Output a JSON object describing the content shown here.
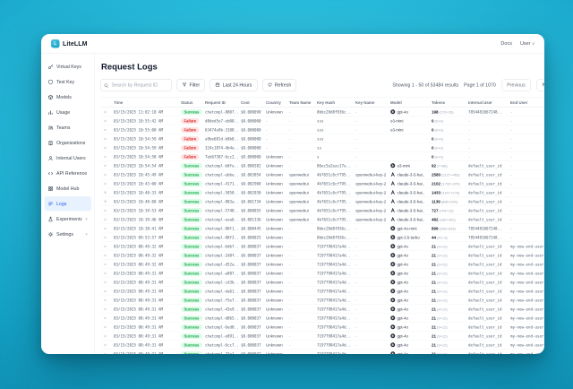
{
  "topbar": {
    "logo": "LiteLLM",
    "docs": "Docs",
    "user": "User"
  },
  "sidebar": {
    "items": [
      {
        "label": "Virtual Keys",
        "icon": "key-icon"
      },
      {
        "label": "Test Key",
        "icon": "test-key-icon"
      },
      {
        "label": "Models",
        "icon": "models-icon"
      },
      {
        "label": "Usage",
        "icon": "usage-icon"
      },
      {
        "label": "Teams",
        "icon": "teams-icon"
      },
      {
        "label": "Organizations",
        "icon": "organizations-icon"
      },
      {
        "label": "Internal Users",
        "icon": "internal-users-icon"
      },
      {
        "label": "API Reference",
        "icon": "api-reference-icon"
      },
      {
        "label": "Model Hub",
        "icon": "model-hub-icon"
      },
      {
        "label": "Logs",
        "icon": "logs-icon",
        "selected": true
      },
      {
        "label": "Experimental",
        "icon": "experimental-icon",
        "expandable": true
      },
      {
        "label": "Settings",
        "icon": "settings-icon",
        "expandable": true
      }
    ]
  },
  "main": {
    "title": "Request Logs",
    "toolbar": {
      "search_placeholder": "Search by Request ID",
      "filter_label": "Filter",
      "time_range_label": "Last 24 Hours",
      "refresh_label": "Refresh"
    },
    "pagination": {
      "showing": "Showing 1 - 50 of 53484 results",
      "page": "Page 1 of 1070",
      "previous": "Previous",
      "next": "Next"
    },
    "table": {
      "columns": [
        "Time",
        "Status",
        "Request ID",
        "Cost",
        "Country",
        "Team Name",
        "Key Hash",
        "Key Name",
        "Model",
        "Tokens",
        "Internal User",
        "End User"
      ],
      "rows": [
        {
          "expand": ">",
          "time": "03/15/2025 11:02:10 AM",
          "status": "Success",
          "request_id": "chatcmpl-8807..",
          "cost": "$0.000090",
          "country": "Unknown",
          "team": "-",
          "key_hash": "8bbc28d8f936c..",
          "key_name": "-",
          "provider": "openai",
          "model": "gpt-4o",
          "tokens": "198",
          "tokens_detail": "(172+26)",
          "internal_user": "7854481067248..",
          "end_user": "-"
        },
        {
          "expand": ">",
          "time": "03/15/2025 10:55:42 AM",
          "status": "Failure",
          "request_id": "d8ded5e7-eb08..",
          "cost": "$0.000000",
          "country": "-",
          "team": "-",
          "key_hash": "sss",
          "key_name": "-",
          "provider": null,
          "model": "o3-mini",
          "tokens": "0",
          "tokens_detail": "(0+0)",
          "internal_user": "-",
          "end_user": "-"
        },
        {
          "expand": ">",
          "time": "03/15/2025 10:55:00 AM",
          "status": "Failure",
          "request_id": "63474a9b-3108..",
          "cost": "$0.000000",
          "country": "-",
          "team": "-",
          "key_hash": "sss",
          "key_name": "-",
          "provider": null,
          "model": "o3-mini",
          "tokens": "0",
          "tokens_detail": "(0+0)",
          "internal_user": "-",
          "end_user": "-"
        },
        {
          "expand": ">",
          "time": "03/15/2025 10:54:59 AM",
          "status": "Failure",
          "request_id": "a9be681d-b8b8..",
          "cost": "$0.000000",
          "country": "-",
          "team": "-",
          "key_hash": "sss",
          "key_name": "-",
          "provider": null,
          "model": "",
          "tokens": "0",
          "tokens_detail": "(0+0)",
          "internal_user": "-",
          "end_user": "-"
        },
        {
          "expand": ">",
          "time": "03/15/2025 10:54:59 AM",
          "status": "Failure",
          "request_id": "324c1874-4b4e..",
          "cost": "$0.000000",
          "country": "-",
          "team": "-",
          "key_hash": "ss",
          "key_name": "-",
          "provider": null,
          "model": "",
          "tokens": "0",
          "tokens_detail": "(0+0)",
          "internal_user": "-",
          "end_user": "-"
        },
        {
          "expand": ">",
          "time": "03/15/2025 10:54:58 AM",
          "status": "Failure",
          "request_id": "7eb67387-6cc2..",
          "cost": "$0.000000",
          "country": "Unknown",
          "team": "-",
          "key_hash": "s",
          "key_name": "-",
          "provider": null,
          "model": "",
          "tokens": "0",
          "tokens_detail": "(0+0)",
          "internal_user": "-",
          "end_user": "-"
        },
        {
          "expand": ">",
          "time": "03/15/2025 10:54:54 AM",
          "status": "Success",
          "request_id": "chatcmpl-b8fe..",
          "cost": "$0.000382",
          "country": "Unknown",
          "team": "-",
          "key_hash": "86ec5a2eac17e..",
          "key_name": "-",
          "provider": "openai",
          "model": "o3-mini",
          "tokens": "92",
          "tokens_detail": "(7+85)",
          "internal_user": "default_user_id",
          "end_user": "-"
        },
        {
          "expand": ">",
          "time": "03/15/2025 10:45:49 AM",
          "status": "Success",
          "request_id": "chatcmpl-ebbe..",
          "cost": "$0.003054",
          "country": "Unknown",
          "team": "openwebui",
          "key_hash": "4b7651c6cf795..",
          "key_name": "openwebui-key-2",
          "provider": "anthropic",
          "model": "claude-3-5-hai..",
          "tokens": "2580",
          "tokens_detail": "(2127+453)",
          "internal_user": "default_user_id",
          "end_user": "-"
        },
        {
          "expand": ">",
          "time": "03/15/2025 10:43:00 AM",
          "status": "Success",
          "request_id": "chatcmpl-4171..",
          "cost": "$0.002908",
          "country": "Unknown",
          "team": "openwebui",
          "key_hash": "4b7651c6cf795..",
          "key_name": "openwebui-key-2",
          "provider": "anthropic",
          "model": "claude-3-5-hai..",
          "tokens": "2102",
          "tokens_detail": "(1732+370)",
          "internal_user": "default_user_id",
          "end_user": "-"
        },
        {
          "expand": "v",
          "time": "03/15/2025 10:40:33 AM",
          "status": "Success",
          "request_id": "chatcmpl-5858..",
          "cost": "$0.002030",
          "country": "Unknown",
          "team": "openwebui",
          "key_hash": "4b7651c6cf795..",
          "key_name": "openwebui-key-2",
          "provider": "anthropic",
          "model": "claude-3-5-hai..",
          "tokens": "1433",
          "tokens_detail": "(1157+276)",
          "internal_user": "default_user_id",
          "end_user": "-"
        },
        {
          "expand": "v",
          "time": "03/15/2025 10:40:08 AM",
          "status": "Success",
          "request_id": "chatcmpl-883a..",
          "cost": "$0.001734",
          "country": "Unknown",
          "team": "openwebui",
          "key_hash": "4b7651c6cf795..",
          "key_name": "openwebui-key-2",
          "provider": "anthropic",
          "model": "claude-3-5-hai..",
          "tokens": "1139",
          "tokens_detail": "(885+254)",
          "internal_user": "default_user_id",
          "end_user": "-"
        },
        {
          "expand": ">",
          "time": "03/15/2025 10:39:53 AM",
          "status": "Success",
          "request_id": "chatcmpl-5748..",
          "cost": "$0.000855",
          "country": "Unknown",
          "team": "openwebui",
          "key_hash": "4b7651c6cf795..",
          "key_name": "openwebui-key-2",
          "provider": "anthropic",
          "model": "claude-3-5-hai..",
          "tokens": "727",
          "tokens_detail": "(704+23)",
          "internal_user": "default_user_id",
          "end_user": "-"
        },
        {
          "expand": ">",
          "time": "03/15/2025 10:39:46 AM",
          "status": "Success",
          "request_id": "chatcmpl-eoa6..",
          "cost": "$0.001336",
          "country": "Unknown",
          "team": "openwebui",
          "key_hash": "4b7651c6cf795..",
          "key_name": "openwebui-key-2",
          "provider": "anthropic",
          "model": "claude-3-5-hai..",
          "tokens": "482",
          "tokens_detail": "(180+302)",
          "internal_user": "default_user_id",
          "end_user": "-"
        },
        {
          "expand": ">",
          "time": "03/15/2025 10:38:41 AM",
          "status": "Success",
          "request_id": "chatcmpl-88f1..",
          "cost": "$0.000445",
          "country": "Unknown",
          "team": "-",
          "key_hash": "8bbc28d8f936c..",
          "key_name": "-",
          "provider": "openai",
          "model": "gpt-4o-mini",
          "tokens": "899",
          "tokens_detail": "(206+693)",
          "internal_user": "7854481067248..",
          "end_user": "-"
        },
        {
          "expand": ">",
          "time": "03/15/2025 09:53:57 AM",
          "status": "Success",
          "request_id": "chatcmpl-88f3..",
          "cost": "$0.000025",
          "country": "Unknown",
          "team": "-",
          "key_hash": "8bbc28d8f936c..",
          "key_name": "-",
          "provider": "openai",
          "model": "gpt-3.5-turbo",
          "tokens": "44",
          "tokens_detail": "(41+3)",
          "internal_user": "7854481067248..",
          "end_user": "-"
        },
        {
          "expand": ">",
          "time": "03/15/2025 08:49:32 AM",
          "status": "Success",
          "request_id": "chatcmpl-6db7..",
          "cost": "$0.000037",
          "country": "Unknown",
          "team": "-",
          "key_hash": "7197798417a4d..",
          "key_name": "-",
          "provider": "openai",
          "model": "gpt-4o",
          "tokens": "21",
          "tokens_detail": "(9+12)",
          "internal_user": "default_user_id",
          "end_user": "my-new-end-user-1"
        },
        {
          "expand": ">",
          "time": "03/15/2025 08:49:32 AM",
          "status": "Success",
          "request_id": "chatcmpl-2d8f..",
          "cost": "$0.000037",
          "country": "Unknown",
          "team": "-",
          "key_hash": "7197798417a4d..",
          "key_name": "-",
          "provider": "openai",
          "model": "gpt-4o",
          "tokens": "21",
          "tokens_detail": "(9+12)",
          "internal_user": "default_user_id",
          "end_user": "my-new-end-user-1"
        },
        {
          "expand": ">",
          "time": "03/15/2025 08:49:32 AM",
          "status": "Success",
          "request_id": "chatcmpl-d52a..",
          "cost": "$0.000037",
          "country": "Unknown",
          "team": "-",
          "key_hash": "7197798417a4d..",
          "key_name": "-",
          "provider": "openai",
          "model": "gpt-4o",
          "tokens": "21",
          "tokens_detail": "(9+12)",
          "internal_user": "default_user_id",
          "end_user": "my-new-end-user-1"
        },
        {
          "expand": ">",
          "time": "03/15/2025 08:49:31 AM",
          "status": "Success",
          "request_id": "chatcmpl-a887..",
          "cost": "$0.000037",
          "country": "Unknown",
          "team": "-",
          "key_hash": "7197798417a4d..",
          "key_name": "-",
          "provider": "openai",
          "model": "gpt-4o",
          "tokens": "21",
          "tokens_detail": "(9+12)",
          "internal_user": "default_user_id",
          "end_user": "my-new-end-user-1"
        },
        {
          "expand": ">",
          "time": "03/15/2025 08:49:31 AM",
          "status": "Success",
          "request_id": "chatcmpl-cd3b..",
          "cost": "$0.000037",
          "country": "Unknown",
          "team": "-",
          "key_hash": "7197798417a4d..",
          "key_name": "-",
          "provider": "openai",
          "model": "gpt-4o",
          "tokens": "21",
          "tokens_detail": "(9+12)",
          "internal_user": "default_user_id",
          "end_user": "my-new-end-user-1"
        },
        {
          "expand": ">",
          "time": "03/15/2025 08:49:31 AM",
          "status": "Success",
          "request_id": "chatcmpl-da61..",
          "cost": "$0.000037",
          "country": "Unknown",
          "team": "-",
          "key_hash": "7197798417a4d..",
          "key_name": "-",
          "provider": "openai",
          "model": "gpt-4o",
          "tokens": "21",
          "tokens_detail": "(9+12)",
          "internal_user": "default_user_id",
          "end_user": "my-new-end-user-1"
        },
        {
          "expand": ">",
          "time": "03/15/2025 08:49:31 AM",
          "status": "Success",
          "request_id": "chatcmpl-f5e7..",
          "cost": "$0.000037",
          "country": "Unknown",
          "team": "-",
          "key_hash": "7197798417a4d..",
          "key_name": "-",
          "provider": "openai",
          "model": "gpt-4o",
          "tokens": "21",
          "tokens_detail": "(9+12)",
          "internal_user": "default_user_id",
          "end_user": "my-new-end-user-1"
        },
        {
          "expand": ">",
          "time": "03/15/2025 08:49:31 AM",
          "status": "Success",
          "request_id": "chatcmpl-43e9..",
          "cost": "$0.000037",
          "country": "Unknown",
          "team": "-",
          "key_hash": "7197798417a4d..",
          "key_name": "-",
          "provider": "openai",
          "model": "gpt-4o",
          "tokens": "21",
          "tokens_detail": "(9+12)",
          "internal_user": "default_user_id",
          "end_user": "my-new-end-user-1"
        },
        {
          "expand": ">",
          "time": "03/15/2025 08:49:31 AM",
          "status": "Success",
          "request_id": "chatcmpl-d865..",
          "cost": "$0.000037",
          "country": "Unknown",
          "team": "-",
          "key_hash": "7197798417a4d..",
          "key_name": "-",
          "provider": "openai",
          "model": "gpt-4o",
          "tokens": "21",
          "tokens_detail": "(9+12)",
          "internal_user": "default_user_id",
          "end_user": "my-new-end-user-1"
        },
        {
          "expand": ">",
          "time": "03/15/2025 08:49:31 AM",
          "status": "Success",
          "request_id": "chatcmpl-6ed8..",
          "cost": "$0.000037",
          "country": "Unknown",
          "team": "-",
          "key_hash": "7197798417a4d..",
          "key_name": "-",
          "provider": "openai",
          "model": "gpt-4o",
          "tokens": "21",
          "tokens_detail": "(9+12)",
          "internal_user": "default_user_id",
          "end_user": "my-new-end-user-1"
        },
        {
          "expand": ">",
          "time": "03/15/2025 08:49:31 AM",
          "status": "Success",
          "request_id": "chatcmpl-e891..",
          "cost": "$0.000037",
          "country": "Unknown",
          "team": "-",
          "key_hash": "7197798417a4d..",
          "key_name": "-",
          "provider": "openai",
          "model": "gpt-4o",
          "tokens": "21",
          "tokens_detail": "(9+12)",
          "internal_user": "default_user_id",
          "end_user": "my-new-end-user-1"
        },
        {
          "expand": ">",
          "time": "03/15/2025 08:49:31 AM",
          "status": "Success",
          "request_id": "chatcmpl-6cc7..",
          "cost": "$0.000037",
          "country": "Unknown",
          "team": "-",
          "key_hash": "7197798417a4d..",
          "key_name": "-",
          "provider": "openai",
          "model": "gpt-4o",
          "tokens": "21",
          "tokens_detail": "(9+12)",
          "internal_user": "default_user_id",
          "end_user": "my-new-end-user-1"
        },
        {
          "expand": ">",
          "time": "03/15/2025 08:49:31 AM",
          "status": "Success",
          "request_id": "chatcmpl-77e1..",
          "cost": "$0.000037",
          "country": "Unknown",
          "team": "-",
          "key_hash": "7197798417a4d..",
          "key_name": "-",
          "provider": "openai",
          "model": "gpt-4o",
          "tokens": "21",
          "tokens_detail": "(9+12)",
          "internal_user": "default_user_id",
          "end_user": "my-new-end-user-1"
        },
        {
          "expand": ">",
          "time": "03/15/2025 08:49:31 AM",
          "status": "Success",
          "request_id": "chatcmpl-6147..",
          "cost": "$0.000037",
          "country": "Unknown",
          "team": "-",
          "key_hash": "7197798417a4d..",
          "key_name": "-",
          "provider": "openai",
          "model": "gpt-4o",
          "tokens": "21",
          "tokens_detail": "(9+12)",
          "internal_user": "default_user_id",
          "end_user": "my-new-end-user-1"
        },
        {
          "expand": ">",
          "time": "03/15/2025 08:49:31 AM",
          "status": "Success",
          "request_id": "chatcmpl-8968..",
          "cost": "$0.000037",
          "country": "Unknown",
          "team": "-",
          "key_hash": "7197798417a4d..",
          "key_name": "-",
          "provider": "openai",
          "model": "gpt-4o",
          "tokens": "21",
          "tokens_detail": "(9+12)",
          "internal_user": "default_user_id",
          "end_user": "my-new-end-user-1"
        },
        {
          "expand": ">",
          "time": "03/15/2025 08:49:31 AM",
          "status": "Success",
          "request_id": "chatcmpl-a717..",
          "cost": "$0.000037",
          "country": "Unknown",
          "team": "-",
          "key_hash": "7197798417a4d..",
          "key_name": "-",
          "provider": "openai",
          "model": "gpt-4o",
          "tokens": "21",
          "tokens_detail": "(9+12)",
          "internal_user": "default_user_id",
          "end_user": "my-new-end-user-1"
        }
      ]
    }
  },
  "colors": {
    "accent_blue": "#2563eb",
    "logo_teal": "#26b7d7",
    "success_bg": "#dcfce7",
    "success_text": "#16a34a",
    "failure_bg": "#fee2e2",
    "failure_text": "#dc2626"
  }
}
